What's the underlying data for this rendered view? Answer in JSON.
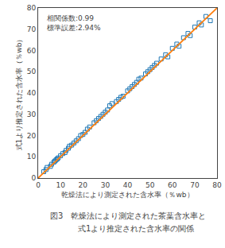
{
  "chart_data": {
    "type": "scatter",
    "xlabel": "乾燥法により測定された含水率（％wb）",
    "ylabel": "式1より推定された含水率（％wb）",
    "annotations": [
      "相関係数:0.99",
      "標準誤差:2.94%"
    ],
    "caption": [
      "図3　乾燥法により測定された茶葉含水率と",
      "　　式1より推定された含水率の関係"
    ],
    "xlim": [
      0,
      80
    ],
    "ylim": [
      0,
      80
    ],
    "xticks": [
      0,
      10,
      20,
      30,
      40,
      50,
      60,
      70,
      80
    ],
    "yticks": [
      0,
      10,
      20,
      30,
      40,
      50,
      60,
      70,
      80
    ],
    "grid": false,
    "series": [
      {
        "type": "scatter",
        "marker": "square-open",
        "x": [
          2.5,
          3.5,
          4.0,
          5.5,
          6.0,
          7.0,
          7.5,
          8.0,
          8.5,
          9.0,
          10.0,
          11.0,
          12.0,
          12.5,
          13.5,
          14.0,
          15.0,
          16.0,
          17.0,
          18.0,
          19.0,
          20.0,
          21.0,
          22.0,
          23.0,
          25.0,
          26.0,
          27.0,
          28.0,
          29.0,
          30.0,
          31.0,
          32.0,
          33.0,
          35.0,
          36.0,
          37.0,
          38.0,
          40.0,
          41.0,
          42.0,
          43.0,
          44.0,
          45.0,
          46.0,
          48.0,
          49.0,
          50.0,
          51.0,
          52.0,
          53.0,
          55.0,
          57.0,
          58.0,
          60.0,
          62.0,
          63.0,
          65.0,
          67.0,
          68.0,
          70.0,
          72.0,
          73.0,
          75.0,
          77.0
        ],
        "values": [
          3.0,
          4.0,
          5.0,
          5.5,
          6.5,
          7.5,
          8.0,
          8.5,
          9.0,
          9.5,
          10.5,
          11.5,
          12.0,
          13.0,
          14.0,
          15.0,
          15.5,
          16.5,
          17.5,
          18.5,
          20.0,
          20.5,
          21.5,
          23.0,
          24.0,
          26.0,
          27.0,
          28.0,
          29.0,
          30.0,
          31.0,
          32.0,
          34.0,
          35.0,
          36.0,
          37.0,
          38.0,
          38.5,
          41.0,
          42.0,
          43.0,
          44.0,
          45.0,
          46.5,
          47.0,
          49.0,
          50.0,
          51.0,
          52.0,
          53.0,
          54.0,
          56.0,
          58.0,
          57.0,
          61.0,
          63.0,
          62.0,
          66.0,
          68.0,
          67.0,
          71.0,
          73.0,
          72.0,
          76.0,
          74.0
        ]
      },
      {
        "type": "line",
        "x": [
          0,
          80
        ],
        "values": [
          0,
          80
        ]
      }
    ]
  }
}
